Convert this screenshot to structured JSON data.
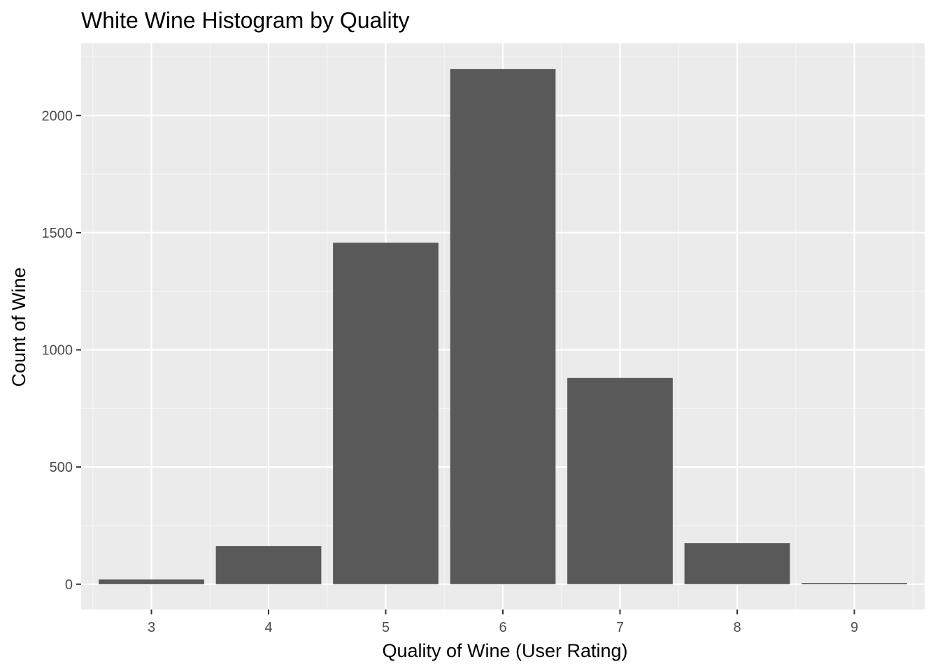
{
  "chart_data": {
    "type": "bar",
    "title": "White Wine Histogram by Quality",
    "xlabel": "Quality of Wine (User Rating)",
    "ylabel": "Count of Wine",
    "categories": [
      "3",
      "4",
      "5",
      "6",
      "7",
      "8",
      "9"
    ],
    "values": [
      20,
      163,
      1457,
      2198,
      880,
      175,
      5
    ],
    "ylim": [
      -108,
      2308
    ],
    "yticks": [
      0,
      500,
      1000,
      1500,
      2000
    ],
    "yticks_labels": [
      "0",
      "500",
      "1000",
      "1500",
      "2000"
    ],
    "grid": true,
    "legend": "none",
    "colors": {
      "bar": "#595959",
      "panel": "#ebebeb",
      "grid_major": "#ffffff",
      "grid_minor": "#f5f5f5",
      "tick_text": "#4d4d4d",
      "tick_mark": "#333333"
    }
  }
}
